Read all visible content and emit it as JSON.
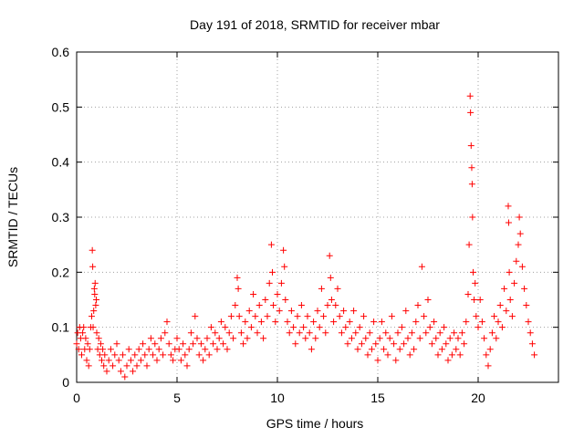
{
  "chart_data": {
    "type": "scatter",
    "title": "Day 191 of 2018, SRMTID for receiver mbar",
    "xlabel": "GPS time / hours",
    "ylabel": "SRMTID / TECUs",
    "xlim": [
      0,
      24
    ],
    "ylim": [
      0,
      0.6
    ],
    "xticks": [
      0,
      5,
      10,
      15,
      20
    ],
    "xtick_labels": [
      "0",
      "5",
      "10",
      "15",
      "20"
    ],
    "yticks": [
      0,
      0.1,
      0.2,
      0.3,
      0.4,
      0.5,
      0.6
    ],
    "ytick_labels": [
      "0",
      "0.1",
      "0.2",
      "0.3",
      "0.4",
      "0.5",
      "0.6"
    ],
    "grid": true,
    "marker": "+",
    "series": [
      {
        "name": "SRMTID",
        "color": "#ff0000",
        "points": [
          [
            0.0,
            0.07
          ],
          [
            0.05,
            0.09
          ],
          [
            0.1,
            0.06
          ],
          [
            0.15,
            0.1
          ],
          [
            0.2,
            0.08
          ],
          [
            0.25,
            0.05
          ],
          [
            0.3,
            0.09
          ],
          [
            0.35,
            0.1
          ],
          [
            0.4,
            0.06
          ],
          [
            0.45,
            0.08
          ],
          [
            0.5,
            0.04
          ],
          [
            0.55,
            0.07
          ],
          [
            0.6,
            0.03
          ],
          [
            0.65,
            0.06
          ],
          [
            0.7,
            0.1
          ],
          [
            0.75,
            0.12
          ],
          [
            0.78,
            0.24
          ],
          [
            0.8,
            0.21
          ],
          [
            0.82,
            0.1
          ],
          [
            0.85,
            0.13
          ],
          [
            0.88,
            0.17
          ],
          [
            0.9,
            0.16
          ],
          [
            0.92,
            0.18
          ],
          [
            0.95,
            0.14
          ],
          [
            0.98,
            0.15
          ],
          [
            1.0,
            0.09
          ],
          [
            1.05,
            0.06
          ],
          [
            1.1,
            0.08
          ],
          [
            1.15,
            0.05
          ],
          [
            1.2,
            0.07
          ],
          [
            1.25,
            0.04
          ],
          [
            1.3,
            0.06
          ],
          [
            1.35,
            0.03
          ],
          [
            1.4,
            0.05
          ],
          [
            1.5,
            0.02
          ],
          [
            1.6,
            0.04
          ],
          [
            1.7,
            0.06
          ],
          [
            1.8,
            0.03
          ],
          [
            1.9,
            0.05
          ],
          [
            2.0,
            0.07
          ],
          [
            2.1,
            0.04
          ],
          [
            2.2,
            0.02
          ],
          [
            2.3,
            0.05
          ],
          [
            2.4,
            0.01
          ],
          [
            2.5,
            0.03
          ],
          [
            2.6,
            0.06
          ],
          [
            2.7,
            0.04
          ],
          [
            2.8,
            0.02
          ],
          [
            2.9,
            0.05
          ],
          [
            3.0,
            0.03
          ],
          [
            3.1,
            0.06
          ],
          [
            3.2,
            0.04
          ],
          [
            3.3,
            0.07
          ],
          [
            3.4,
            0.05
          ],
          [
            3.5,
            0.03
          ],
          [
            3.6,
            0.06
          ],
          [
            3.7,
            0.08
          ],
          [
            3.8,
            0.05
          ],
          [
            3.9,
            0.07
          ],
          [
            4.0,
            0.04
          ],
          [
            4.1,
            0.06
          ],
          [
            4.2,
            0.08
          ],
          [
            4.3,
            0.05
          ],
          [
            4.4,
            0.09
          ],
          [
            4.5,
            0.11
          ],
          [
            4.6,
            0.07
          ],
          [
            4.7,
            0.05
          ],
          [
            4.8,
            0.04
          ],
          [
            4.9,
            0.06
          ],
          [
            5.0,
            0.08
          ],
          [
            5.1,
            0.06
          ],
          [
            5.2,
            0.04
          ],
          [
            5.3,
            0.07
          ],
          [
            5.4,
            0.05
          ],
          [
            5.5,
            0.03
          ],
          [
            5.6,
            0.06
          ],
          [
            5.7,
            0.09
          ],
          [
            5.8,
            0.07
          ],
          [
            5.9,
            0.12
          ],
          [
            6.0,
            0.08
          ],
          [
            6.1,
            0.05
          ],
          [
            6.2,
            0.07
          ],
          [
            6.3,
            0.04
          ],
          [
            6.4,
            0.06
          ],
          [
            6.5,
            0.08
          ],
          [
            6.6,
            0.05
          ],
          [
            6.7,
            0.1
          ],
          [
            6.8,
            0.07
          ],
          [
            6.9,
            0.09
          ],
          [
            7.0,
            0.06
          ],
          [
            7.1,
            0.08
          ],
          [
            7.2,
            0.11
          ],
          [
            7.3,
            0.07
          ],
          [
            7.4,
            0.1
          ],
          [
            7.5,
            0.06
          ],
          [
            7.6,
            0.09
          ],
          [
            7.7,
            0.12
          ],
          [
            7.8,
            0.08
          ],
          [
            7.9,
            0.14
          ],
          [
            8.0,
            0.19
          ],
          [
            8.05,
            0.17
          ],
          [
            8.1,
            0.12
          ],
          [
            8.2,
            0.09
          ],
          [
            8.3,
            0.07
          ],
          [
            8.4,
            0.11
          ],
          [
            8.5,
            0.08
          ],
          [
            8.6,
            0.13
          ],
          [
            8.7,
            0.1
          ],
          [
            8.8,
            0.16
          ],
          [
            8.9,
            0.12
          ],
          [
            9.0,
            0.09
          ],
          [
            9.1,
            0.14
          ],
          [
            9.2,
            0.11
          ],
          [
            9.3,
            0.08
          ],
          [
            9.4,
            0.15
          ],
          [
            9.5,
            0.12
          ],
          [
            9.6,
            0.18
          ],
          [
            9.7,
            0.25
          ],
          [
            9.75,
            0.2
          ],
          [
            9.8,
            0.14
          ],
          [
            9.9,
            0.11
          ],
          [
            10.0,
            0.16
          ],
          [
            10.1,
            0.13
          ],
          [
            10.2,
            0.18
          ],
          [
            10.3,
            0.24
          ],
          [
            10.35,
            0.21
          ],
          [
            10.4,
            0.15
          ],
          [
            10.5,
            0.11
          ],
          [
            10.6,
            0.09
          ],
          [
            10.7,
            0.13
          ],
          [
            10.8,
            0.1
          ],
          [
            10.9,
            0.07
          ],
          [
            11.0,
            0.12
          ],
          [
            11.1,
            0.09
          ],
          [
            11.2,
            0.14
          ],
          [
            11.3,
            0.1
          ],
          [
            11.4,
            0.08
          ],
          [
            11.5,
            0.12
          ],
          [
            11.6,
            0.09
          ],
          [
            11.7,
            0.06
          ],
          [
            11.8,
            0.11
          ],
          [
            11.9,
            0.08
          ],
          [
            12.0,
            0.13
          ],
          [
            12.1,
            0.1
          ],
          [
            12.2,
            0.17
          ],
          [
            12.3,
            0.12
          ],
          [
            12.4,
            0.09
          ],
          [
            12.5,
            0.14
          ],
          [
            12.6,
            0.23
          ],
          [
            12.65,
            0.19
          ],
          [
            12.7,
            0.15
          ],
          [
            12.8,
            0.11
          ],
          [
            12.9,
            0.14
          ],
          [
            13.0,
            0.17
          ],
          [
            13.1,
            0.12
          ],
          [
            13.2,
            0.09
          ],
          [
            13.3,
            0.13
          ],
          [
            13.4,
            0.1
          ],
          [
            13.5,
            0.07
          ],
          [
            13.6,
            0.11
          ],
          [
            13.7,
            0.08
          ],
          [
            13.8,
            0.13
          ],
          [
            13.9,
            0.09
          ],
          [
            14.0,
            0.06
          ],
          [
            14.1,
            0.1
          ],
          [
            14.2,
            0.07
          ],
          [
            14.3,
            0.12
          ],
          [
            14.4,
            0.08
          ],
          [
            14.5,
            0.05
          ],
          [
            14.6,
            0.09
          ],
          [
            14.7,
            0.06
          ],
          [
            14.8,
            0.11
          ],
          [
            14.9,
            0.07
          ],
          [
            15.0,
            0.04
          ],
          [
            15.1,
            0.08
          ],
          [
            15.2,
            0.11
          ],
          [
            15.3,
            0.06
          ],
          [
            15.4,
            0.09
          ],
          [
            15.5,
            0.05
          ],
          [
            15.6,
            0.08
          ],
          [
            15.7,
            0.12
          ],
          [
            15.8,
            0.07
          ],
          [
            15.9,
            0.04
          ],
          [
            16.0,
            0.09
          ],
          [
            16.1,
            0.06
          ],
          [
            16.2,
            0.1
          ],
          [
            16.3,
            0.07
          ],
          [
            16.4,
            0.13
          ],
          [
            16.5,
            0.08
          ],
          [
            16.6,
            0.05
          ],
          [
            16.7,
            0.09
          ],
          [
            16.8,
            0.06
          ],
          [
            16.9,
            0.11
          ],
          [
            17.0,
            0.14
          ],
          [
            17.1,
            0.08
          ],
          [
            17.2,
            0.21
          ],
          [
            17.3,
            0.12
          ],
          [
            17.4,
            0.09
          ],
          [
            17.5,
            0.15
          ],
          [
            17.6,
            0.1
          ],
          [
            17.7,
            0.07
          ],
          [
            17.8,
            0.11
          ],
          [
            17.9,
            0.08
          ],
          [
            18.0,
            0.05
          ],
          [
            18.1,
            0.09
          ],
          [
            18.2,
            0.06
          ],
          [
            18.3,
            0.1
          ],
          [
            18.4,
            0.07
          ],
          [
            18.5,
            0.04
          ],
          [
            18.6,
            0.08
          ],
          [
            18.7,
            0.05
          ],
          [
            18.8,
            0.09
          ],
          [
            18.9,
            0.06
          ],
          [
            19.0,
            0.08
          ],
          [
            19.1,
            0.05
          ],
          [
            19.2,
            0.09
          ],
          [
            19.3,
            0.07
          ],
          [
            19.4,
            0.11
          ],
          [
            19.5,
            0.16
          ],
          [
            19.55,
            0.25
          ],
          [
            19.6,
            0.52
          ],
          [
            19.62,
            0.49
          ],
          [
            19.65,
            0.43
          ],
          [
            19.68,
            0.39
          ],
          [
            19.7,
            0.36
          ],
          [
            19.72,
            0.3
          ],
          [
            19.75,
            0.2
          ],
          [
            19.8,
            0.15
          ],
          [
            19.85,
            0.18
          ],
          [
            19.9,
            0.12
          ],
          [
            20.0,
            0.1
          ],
          [
            20.1,
            0.15
          ],
          [
            20.2,
            0.11
          ],
          [
            20.3,
            0.08
          ],
          [
            20.4,
            0.05
          ],
          [
            20.5,
            0.03
          ],
          [
            20.6,
            0.06
          ],
          [
            20.7,
            0.09
          ],
          [
            20.8,
            0.12
          ],
          [
            20.9,
            0.08
          ],
          [
            21.0,
            0.11
          ],
          [
            21.1,
            0.14
          ],
          [
            21.2,
            0.1
          ],
          [
            21.3,
            0.17
          ],
          [
            21.4,
            0.13
          ],
          [
            21.5,
            0.32
          ],
          [
            21.52,
            0.29
          ],
          [
            21.55,
            0.2
          ],
          [
            21.6,
            0.15
          ],
          [
            21.7,
            0.12
          ],
          [
            21.8,
            0.18
          ],
          [
            21.9,
            0.22
          ],
          [
            22.0,
            0.25
          ],
          [
            22.05,
            0.3
          ],
          [
            22.1,
            0.27
          ],
          [
            22.2,
            0.21
          ],
          [
            22.3,
            0.17
          ],
          [
            22.4,
            0.14
          ],
          [
            22.5,
            0.11
          ],
          [
            22.6,
            0.09
          ],
          [
            22.7,
            0.07
          ],
          [
            22.8,
            0.05
          ]
        ]
      }
    ]
  }
}
